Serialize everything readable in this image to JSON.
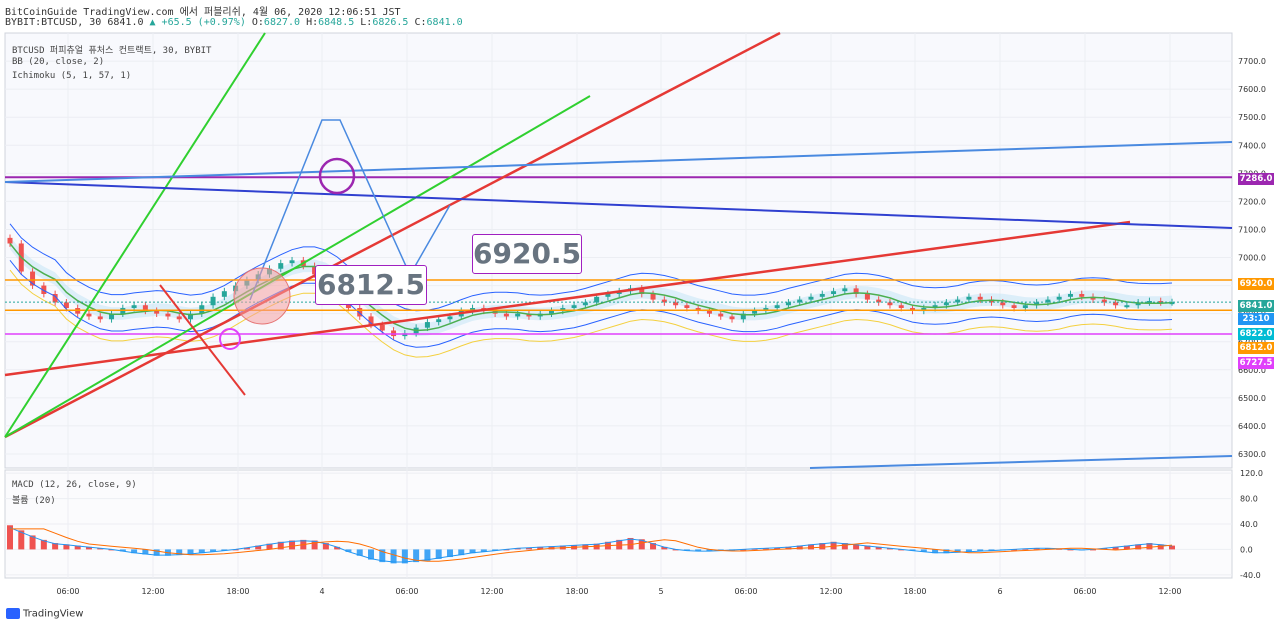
{
  "header": {
    "line1": "BitCoinGuide TradingView.com 에서 퍼블리쉬, 4월 06, 2020 12:06:51 JST",
    "symbol": "BYBIT:BTCUSD, 30",
    "price": "6841.0",
    "change": "▲ +65.5 (+0.97%)",
    "o_label": "O:",
    "o": "6827.0",
    "h_label": "H:",
    "h": "6848.5",
    "l_label": "L:",
    "l": "6826.5",
    "c_label": "C:",
    "c": "6841.0"
  },
  "legend": {
    "title": "BTCUSD 퍼피츄얼 퓨처스 컨트랙트, 30, BYBIT",
    "bb": "BB (20, close, 2)",
    "ichimoku": "Ichimoku (5, 1, 57, 1)",
    "macd": "MACD (12, 26, close, 9)",
    "vol": "볼륨 (20)"
  },
  "price_tags": [
    {
      "label": "7286.0",
      "color": "#9c27b0"
    },
    {
      "label": "6920.0",
      "color": "#ff9800"
    },
    {
      "label": "6841.0",
      "color": "#26a69a"
    },
    {
      "label": "23:10",
      "color": "#2196f3"
    },
    {
      "label": "6822.0",
      "color": "#00bcd4"
    },
    {
      "label": "6812.0",
      "color": "#ff9800"
    },
    {
      "label": "6727.5",
      "color": "#e040fb"
    }
  ],
  "annotations": {
    "box1": "6812.5",
    "box2": "6920.5"
  },
  "branding": "TradingView",
  "colors": {
    "up": "#26a69a",
    "down": "#ef5350",
    "bb": "#2962ff",
    "ichimoku_base": "#4caf50",
    "ichimoku_lag": "#ffeb3b",
    "macd": "#2196f3",
    "signal": "#ff6d00"
  },
  "chart_data": [
    {
      "type": "line",
      "panel": "price",
      "ylim": [
        6250,
        7800
      ],
      "y_ticks": [
        6300,
        6400,
        6500,
        6600,
        6700,
        6800,
        6900,
        7000,
        7100,
        7200,
        7300,
        7400,
        7500,
        7600,
        7700
      ],
      "x_ticks": [
        "06:00",
        "12:00",
        "18:00",
        "4",
        "06:00",
        "12:00",
        "18:00",
        "5",
        "06:00",
        "12:00",
        "18:00",
        "6",
        "06:00",
        "12:00"
      ],
      "series": [
        {
          "values": [
            7050,
            6950,
            6900,
            6870,
            6840,
            6820,
            6800,
            6790,
            6780,
            6800,
            6820,
            6830,
            6810,
            6800,
            6790,
            6780,
            6800,
            6830,
            6860,
            6880,
            6900,
            6920,
            6940,
            6960,
            6980,
            6990,
            6970,
            6940,
            6900,
            6860,
            6820,
            6790,
            6760,
            6740,
            6720,
            6730,
            6750,
            6770,
            6780,
            6790,
            6810,
            6820,
            6810,
            6800,
            6790,
            6800,
            6790,
            6800,
            6810,
            6820,
            6830,
            6840,
            6860,
            6870,
            6880,
            6890,
            6870,
            6850,
            6840,
            6830,
            6820,
            6810,
            6800,
            6790,
            6780,
            6800,
            6810,
            6820,
            6830,
            6840,
            6850,
            6860,
            6870,
            6880,
            6890,
            6870,
            6850,
            6840,
            6830,
            6820,
            6810,
            6820,
            6830,
            6840,
            6850,
            6860,
            6850,
            6840,
            6830,
            6820,
            6830,
            6840,
            6850,
            6860,
            6870,
            6860,
            6850,
            6840,
            6830,
            6830,
            6840,
            6845,
            6840,
            6841
          ]
        }
      ]
    },
    {
      "type": "bar",
      "panel": "macd",
      "ylim": [
        -45,
        125
      ],
      "y_ticks": [
        120.0,
        80.0,
        40.0,
        0.0,
        -40.0
      ],
      "series": [
        {
          "values": [
            38,
            30,
            22,
            15,
            10,
            8,
            6,
            4,
            2,
            0,
            -3,
            -6,
            -8,
            -10,
            -10,
            -9,
            -8,
            -6,
            -4,
            -2,
            0,
            3,
            6,
            9,
            12,
            14,
            15,
            14,
            10,
            4,
            -4,
            -10,
            -16,
            -20,
            -22,
            -22,
            -20,
            -18,
            -15,
            -12,
            -9,
            -6,
            -4,
            -2,
            0,
            2,
            3,
            4,
            5,
            6,
            7,
            8,
            9,
            12,
            15,
            18,
            16,
            10,
            4,
            0,
            -2,
            -3,
            -3,
            -2,
            -1,
            0,
            1,
            2,
            3,
            4,
            6,
            8,
            10,
            12,
            10,
            8,
            6,
            4,
            2,
            0,
            -2,
            -4,
            -6,
            -6,
            -5,
            -4,
            -3,
            -2,
            -1,
            0,
            1,
            2,
            2,
            1,
            0,
            -1,
            0,
            2,
            4,
            6,
            8,
            10,
            8,
            6
          ]
        }
      ]
    }
  ]
}
